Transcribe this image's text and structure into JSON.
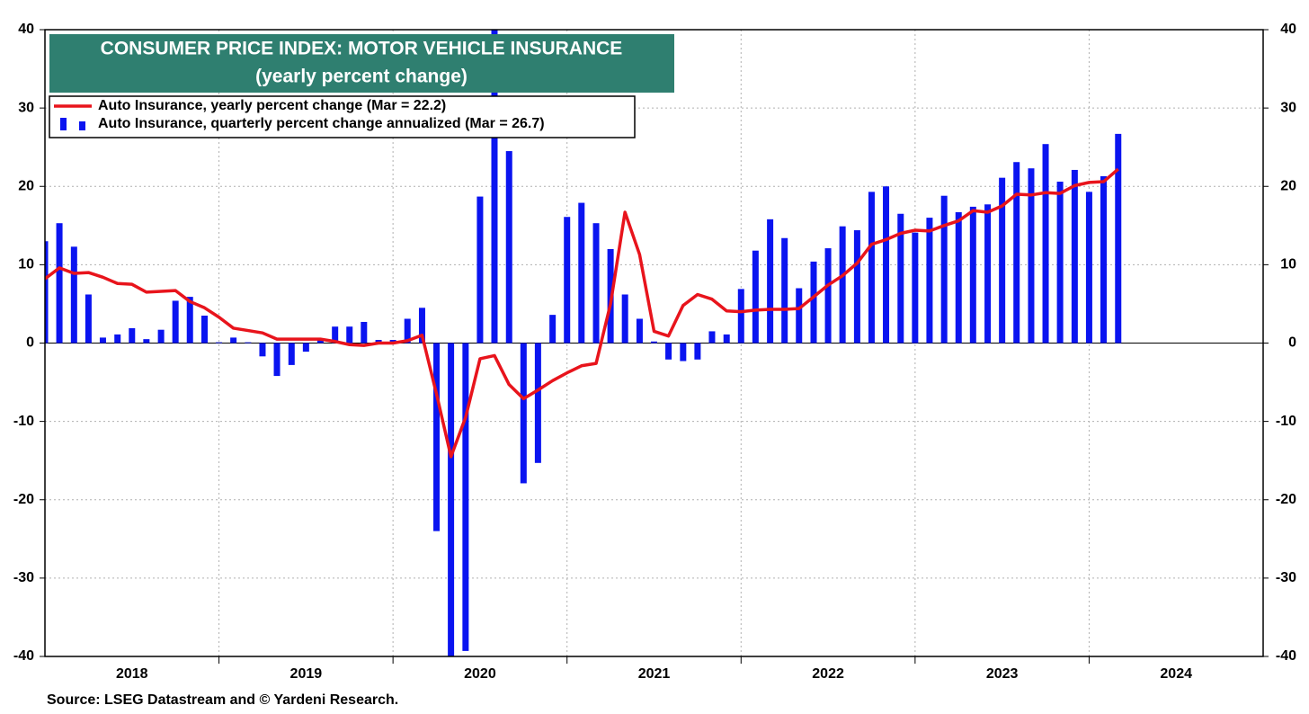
{
  "chart_data": {
    "type": "bar",
    "title": "CONSUMER PRICE INDEX: MOTOR VEHICLE INSURANCE",
    "subtitle": "(yearly percent change)",
    "source": "Source: LSEG Datastream and © Yardeni Research.",
    "x": [
      2018,
      2018.083,
      2018.167,
      2018.25,
      2018.333,
      2018.417,
      2018.5,
      2018.583,
      2018.667,
      2018.75,
      2018.833,
      2018.917,
      2019,
      2019.083,
      2019.167,
      2019.25,
      2019.333,
      2019.417,
      2019.5,
      2019.583,
      2019.667,
      2019.75,
      2019.833,
      2019.917,
      2020,
      2020.083,
      2020.167,
      2020.25,
      2020.333,
      2020.417,
      2020.5,
      2020.583,
      2020.667,
      2020.75,
      2020.833,
      2020.917,
      2021,
      2021.083,
      2021.167,
      2021.25,
      2021.333,
      2021.417,
      2021.5,
      2021.583,
      2021.667,
      2021.75,
      2021.833,
      2021.917,
      2022,
      2022.083,
      2022.167,
      2022.25,
      2022.333,
      2022.417,
      2022.5,
      2022.583,
      2022.667,
      2022.75,
      2022.833,
      2022.917,
      2023,
      2023.083,
      2023.167,
      2023.25,
      2023.333,
      2023.417,
      2023.5,
      2023.583,
      2023.667,
      2023.75,
      2023.833,
      2023.917,
      2024,
      2024.083,
      2024.167
    ],
    "series": [
      {
        "name": "Auto Insurance, yearly percent change (Mar = 22.2)",
        "type": "line",
        "color": "#e8141c",
        "values": [
          8.2,
          9.6,
          8.9,
          9.0,
          8.4,
          7.6,
          7.5,
          6.5,
          6.6,
          6.7,
          5.3,
          4.5,
          3.3,
          1.9,
          1.6,
          1.3,
          0.5,
          0.5,
          0.5,
          0.5,
          0.2,
          -0.2,
          -0.3,
          0.0,
          0.0,
          0.3,
          1.0,
          -6.5,
          -14.5,
          -9.5,
          -2.0,
          -1.6,
          -5.3,
          -7.1,
          -6.0,
          -4.8,
          -3.8,
          -2.9,
          -2.6,
          5.0,
          16.7,
          11.3,
          1.5,
          0.9,
          4.8,
          6.2,
          5.6,
          4.1,
          4.0,
          4.2,
          4.3,
          4.3,
          4.4,
          5.9,
          7.4,
          8.6,
          10.2,
          12.6,
          13.2,
          14.0,
          14.4,
          14.3,
          15.0,
          15.6,
          16.9,
          16.7,
          17.5,
          19.0,
          18.9,
          19.2,
          19.1,
          20.1,
          20.5,
          20.6,
          22.2
        ]
      },
      {
        "name": "Auto Insurance, quarterly percent change annualized (Mar = 26.7)",
        "type": "bar",
        "color": "#0a14f0",
        "values": [
          13.0,
          15.3,
          12.3,
          6.2,
          0.7,
          1.1,
          1.9,
          0.5,
          1.7,
          5.4,
          5.9,
          3.5,
          0.1,
          0.7,
          0.1,
          -1.7,
          -4.2,
          -2.8,
          -1.1,
          0.5,
          2.1,
          2.1,
          2.7,
          0.4,
          0.4,
          3.1,
          4.5,
          -24.0,
          -42.0,
          -39.3,
          18.7,
          41.5,
          24.5,
          -17.9,
          -15.3,
          3.6,
          16.1,
          17.9,
          15.3,
          12.0,
          6.2,
          3.1,
          0.2,
          -2.1,
          -2.3,
          -2.1,
          1.5,
          1.1,
          6.9,
          11.8,
          15.8,
          13.4,
          7.0,
          10.4,
          12.1,
          14.9,
          14.4,
          19.3,
          20.0,
          16.5,
          14.1,
          16.0,
          18.8,
          16.7,
          17.4,
          17.7,
          21.1,
          23.1,
          22.3,
          25.4,
          20.6,
          22.1,
          19.3,
          21.3,
          26.7
        ]
      }
    ],
    "xlim": [
      2018,
      2025
    ],
    "xticks": [
      {
        "value": 2018.5,
        "label": "2018"
      },
      {
        "value": 2019.5,
        "label": "2019"
      },
      {
        "value": 2020.5,
        "label": "2020"
      },
      {
        "value": 2021.5,
        "label": "2021"
      },
      {
        "value": 2022.5,
        "label": "2022"
      },
      {
        "value": 2023.5,
        "label": "2023"
      },
      {
        "value": 2024.5,
        "label": "2024"
      }
    ],
    "ylim": [
      -40,
      40
    ],
    "yticks": [
      -40,
      -30,
      -20,
      -10,
      0,
      10,
      20,
      30,
      40
    ],
    "y2lim": [
      -40,
      40
    ],
    "y2ticks": [
      -40,
      -30,
      -20,
      -10,
      0,
      10,
      20,
      30,
      40
    ],
    "grid": true
  }
}
